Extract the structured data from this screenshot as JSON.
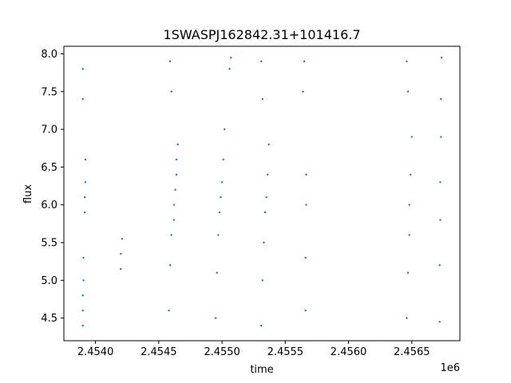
{
  "chart_data": {
    "type": "scatter",
    "title": "1SWASPJ162842.31+101416.7",
    "xlabel": "time",
    "ylabel": "flux",
    "x_offset_label": "1e6",
    "xlim": [
      2453750,
      2456880
    ],
    "ylim": [
      4.2,
      8.1
    ],
    "x_ticks": [
      2454000,
      2454500,
      2455000,
      2455500,
      2456000,
      2456500
    ],
    "x_tick_labels": [
      "2.4540",
      "2.4545",
      "2.4550",
      "2.4555",
      "2.4560",
      "2.4565"
    ],
    "y_ticks": [
      4.5,
      5.0,
      5.5,
      6.0,
      6.5,
      7.0,
      7.5,
      8.0
    ],
    "y_tick_labels": [
      "4.5",
      "5.0",
      "5.5",
      "6.0",
      "6.5",
      "7.0",
      "7.5",
      "8.0"
    ],
    "grid": false,
    "marker_color": "#1f77b4",
    "series": [
      {
        "values": [
          {
            "x": 2453900,
            "y": 4.4
          },
          {
            "x": 2453900,
            "y": 4.6
          },
          {
            "x": 2453900,
            "y": 4.8
          },
          {
            "x": 2453905,
            "y": 5.0
          },
          {
            "x": 2453905,
            "y": 5.3
          },
          {
            "x": 2453915,
            "y": 5.9
          },
          {
            "x": 2453915,
            "y": 6.1
          },
          {
            "x": 2453920,
            "y": 6.3
          },
          {
            "x": 2453920,
            "y": 6.6
          },
          {
            "x": 2453900,
            "y": 7.4
          },
          {
            "x": 2453900,
            "y": 7.8
          },
          {
            "x": 2454200,
            "y": 5.15
          },
          {
            "x": 2454200,
            "y": 5.35
          },
          {
            "x": 2454210,
            "y": 5.55
          },
          {
            "x": 2454580,
            "y": 4.6
          },
          {
            "x": 2454590,
            "y": 5.2
          },
          {
            "x": 2454600,
            "y": 5.6
          },
          {
            "x": 2454620,
            "y": 5.8
          },
          {
            "x": 2454620,
            "y": 6.0
          },
          {
            "x": 2454630,
            "y": 6.2
          },
          {
            "x": 2454640,
            "y": 6.4
          },
          {
            "x": 2454640,
            "y": 6.6
          },
          {
            "x": 2454650,
            "y": 6.8
          },
          {
            "x": 2454600,
            "y": 7.5
          },
          {
            "x": 2454590,
            "y": 7.9
          },
          {
            "x": 2454950,
            "y": 4.5
          },
          {
            "x": 2454960,
            "y": 5.1
          },
          {
            "x": 2454970,
            "y": 5.6
          },
          {
            "x": 2454980,
            "y": 5.9
          },
          {
            "x": 2454990,
            "y": 6.1
          },
          {
            "x": 2455000,
            "y": 6.3
          },
          {
            "x": 2455010,
            "y": 6.6
          },
          {
            "x": 2455020,
            "y": 7.0
          },
          {
            "x": 2455060,
            "y": 7.8
          },
          {
            "x": 2455070,
            "y": 7.95
          },
          {
            "x": 2455310,
            "y": 4.4
          },
          {
            "x": 2455320,
            "y": 5.0
          },
          {
            "x": 2455330,
            "y": 5.5
          },
          {
            "x": 2455340,
            "y": 5.9
          },
          {
            "x": 2455350,
            "y": 6.1
          },
          {
            "x": 2455360,
            "y": 6.4
          },
          {
            "x": 2455370,
            "y": 6.8
          },
          {
            "x": 2455320,
            "y": 7.4
          },
          {
            "x": 2455310,
            "y": 7.9
          },
          {
            "x": 2455660,
            "y": 4.6
          },
          {
            "x": 2455660,
            "y": 5.3
          },
          {
            "x": 2455665,
            "y": 6.0
          },
          {
            "x": 2455665,
            "y": 6.4
          },
          {
            "x": 2455640,
            "y": 7.5
          },
          {
            "x": 2455650,
            "y": 7.9
          },
          {
            "x": 2456460,
            "y": 4.5
          },
          {
            "x": 2456470,
            "y": 5.1
          },
          {
            "x": 2456480,
            "y": 5.6
          },
          {
            "x": 2456480,
            "y": 6.0
          },
          {
            "x": 2456490,
            "y": 6.4
          },
          {
            "x": 2456500,
            "y": 6.9
          },
          {
            "x": 2456470,
            "y": 7.5
          },
          {
            "x": 2456460,
            "y": 7.9
          },
          {
            "x": 2456720,
            "y": 4.45
          },
          {
            "x": 2456720,
            "y": 5.2
          },
          {
            "x": 2456725,
            "y": 5.8
          },
          {
            "x": 2456725,
            "y": 6.3
          },
          {
            "x": 2456730,
            "y": 6.9
          },
          {
            "x": 2456730,
            "y": 7.4
          },
          {
            "x": 2456735,
            "y": 7.95
          }
        ]
      }
    ]
  }
}
